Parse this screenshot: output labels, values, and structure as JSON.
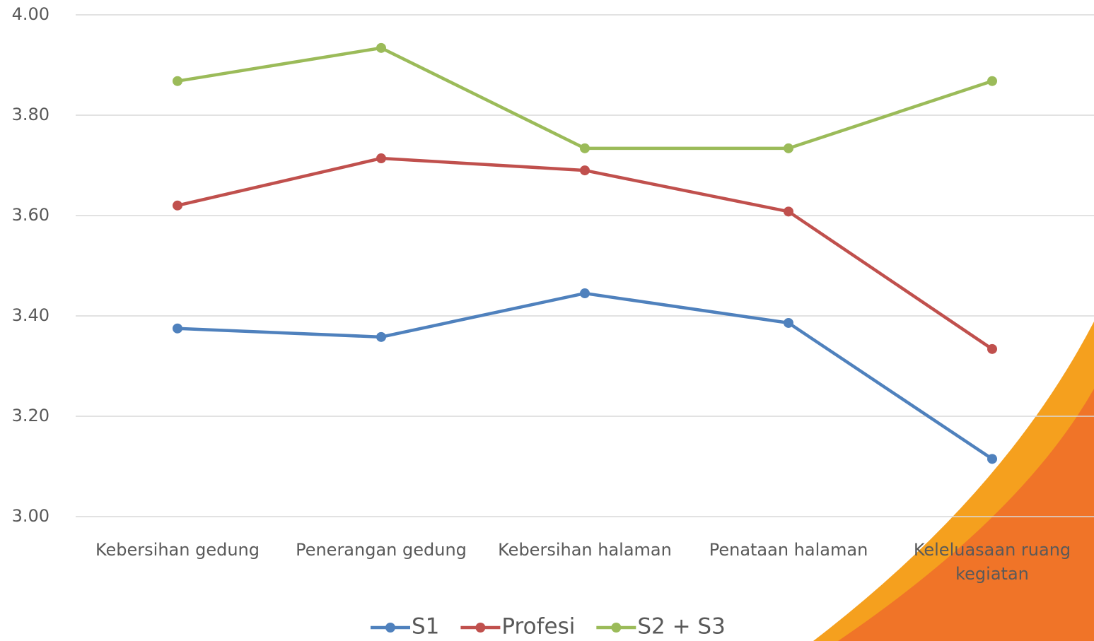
{
  "chart_data": {
    "type": "line",
    "categories": [
      "Kebersihan gedung",
      "Penerangan gedung",
      "Kebersihan halaman",
      "Penataan halaman",
      "Keleluasaan ruang kegiatan"
    ],
    "series": [
      {
        "name": "S1",
        "color": "#4f81bd",
        "values": [
          3.375,
          3.358,
          3.445,
          3.386,
          3.115
        ]
      },
      {
        "name": "Profesi",
        "color": "#c0504d",
        "values": [
          3.62,
          3.714,
          3.69,
          3.608,
          3.334
        ]
      },
      {
        "name": "S2 + S3",
        "color": "#9bbb59",
        "values": [
          3.868,
          3.934,
          3.734,
          3.734,
          3.868
        ]
      }
    ],
    "ylim": [
      3,
      4
    ],
    "yticks": [
      {
        "value": 3,
        "label": "3.00"
      },
      {
        "value": 3.2,
        "label": "3.20"
      },
      {
        "value": 3.4,
        "label": "3.40"
      },
      {
        "value": 3.6,
        "label": "3.60"
      },
      {
        "value": 3.8,
        "label": "3.80"
      },
      {
        "value": 4,
        "label": "4.00"
      }
    ],
    "grid": true,
    "legend": "bottom"
  }
}
